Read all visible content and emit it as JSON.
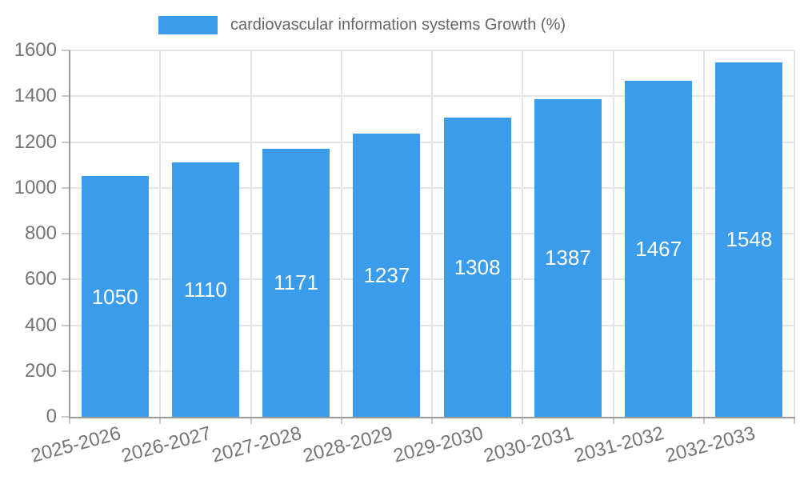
{
  "chart_data": {
    "type": "bar",
    "legend": {
      "position": "top",
      "label": "cardiovascular information systems Growth (%)"
    },
    "categories": [
      "2025-2026",
      "2026-2027",
      "2027-2028",
      "2028-2029",
      "2029-2030",
      "2030-2031",
      "2031-2032",
      "2032-2033"
    ],
    "series": [
      {
        "name": "cardiovascular information systems Growth (%)",
        "values": [
          1050,
          1110,
          1171,
          1237,
          1308,
          1387,
          1467,
          1548
        ]
      }
    ],
    "value_labels": "inside-center",
    "xlabel": "",
    "ylabel": "",
    "ylim": [
      0,
      1600
    ],
    "ytick_step": 200,
    "yticks": [
      0,
      200,
      400,
      600,
      800,
      1000,
      1200,
      1400,
      1600
    ],
    "grid": true,
    "x_tick_label_rotation_deg": -15
  },
  "style": {
    "bar_color": "#3b9cec",
    "grid_color": "#e5e5e5",
    "axis_color": "#9a9a9a",
    "tick_mark_color": "#c9c9c9",
    "tick_text_color": "#757575",
    "legend_text_color": "#666666",
    "value_text_color": "#ffffff",
    "background_color": "#ffffff"
  }
}
